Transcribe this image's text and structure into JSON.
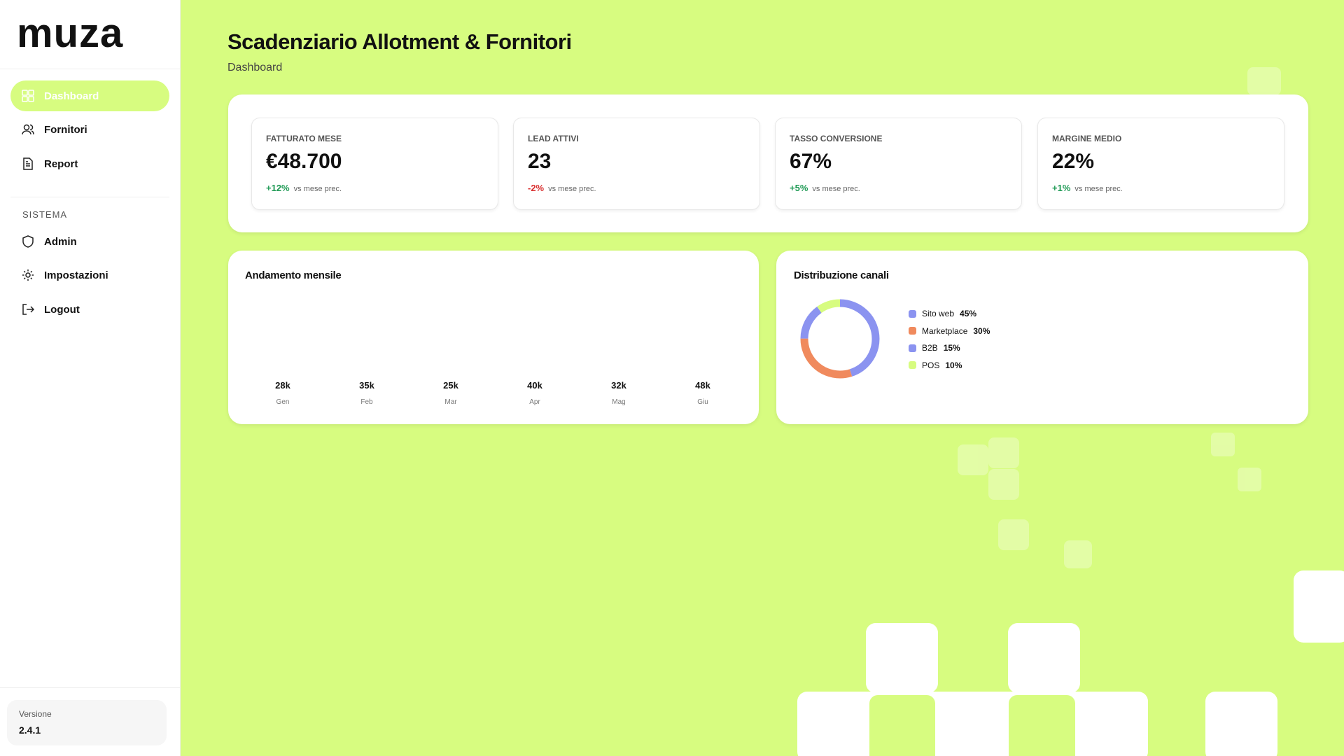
{
  "sidebar": {
    "brand": "muza",
    "nav": [
      "Dashboard",
      "Fornitori",
      "Report"
    ],
    "section": "SISTEMA",
    "system_nav": [
      "Admin",
      "Impostazioni",
      "Logout"
    ],
    "version_label": "Versione",
    "version": "2.4.1"
  },
  "header": {
    "title": "Scadenziario Allotment & Fornitori",
    "subtitle": "Dashboard"
  },
  "kpis": [
    {
      "label": "FATTURATO MESE",
      "value": "€48.700",
      "delta": "+12%",
      "note": "vs mese prec."
    },
    {
      "label": "LEAD ATTIVI",
      "value": "23",
      "delta": "-2%",
      "note": "vs mese prec."
    },
    {
      "label": "TASSO CONVERSIONE",
      "value": "67%",
      "delta": "+5%",
      "note": "vs mese prec."
    },
    {
      "label": "MARGINE MEDIO",
      "value": "22%",
      "delta": "+1%",
      "note": "vs mese prec."
    }
  ],
  "monthly": {
    "title": "Andamento mensile",
    "months": [
      "Gen",
      "Feb",
      "Mar",
      "Apr",
      "Mag",
      "Giu"
    ],
    "values": [
      "28k",
      "35k",
      "25k",
      "40k",
      "32k",
      "48k"
    ]
  },
  "channels": {
    "title": "Distribuzione canali",
    "categories": [
      "Sito web",
      "Marketplace",
      "B2B",
      "POS"
    ],
    "values": [
      45,
      30,
      15,
      10
    ],
    "value_labels": [
      "45%",
      "30%",
      "15%",
      "10%"
    ],
    "colors": [
      "#8b93f0",
      "#f08a5d",
      "#8b93f0",
      "#d7fc80"
    ]
  }
}
